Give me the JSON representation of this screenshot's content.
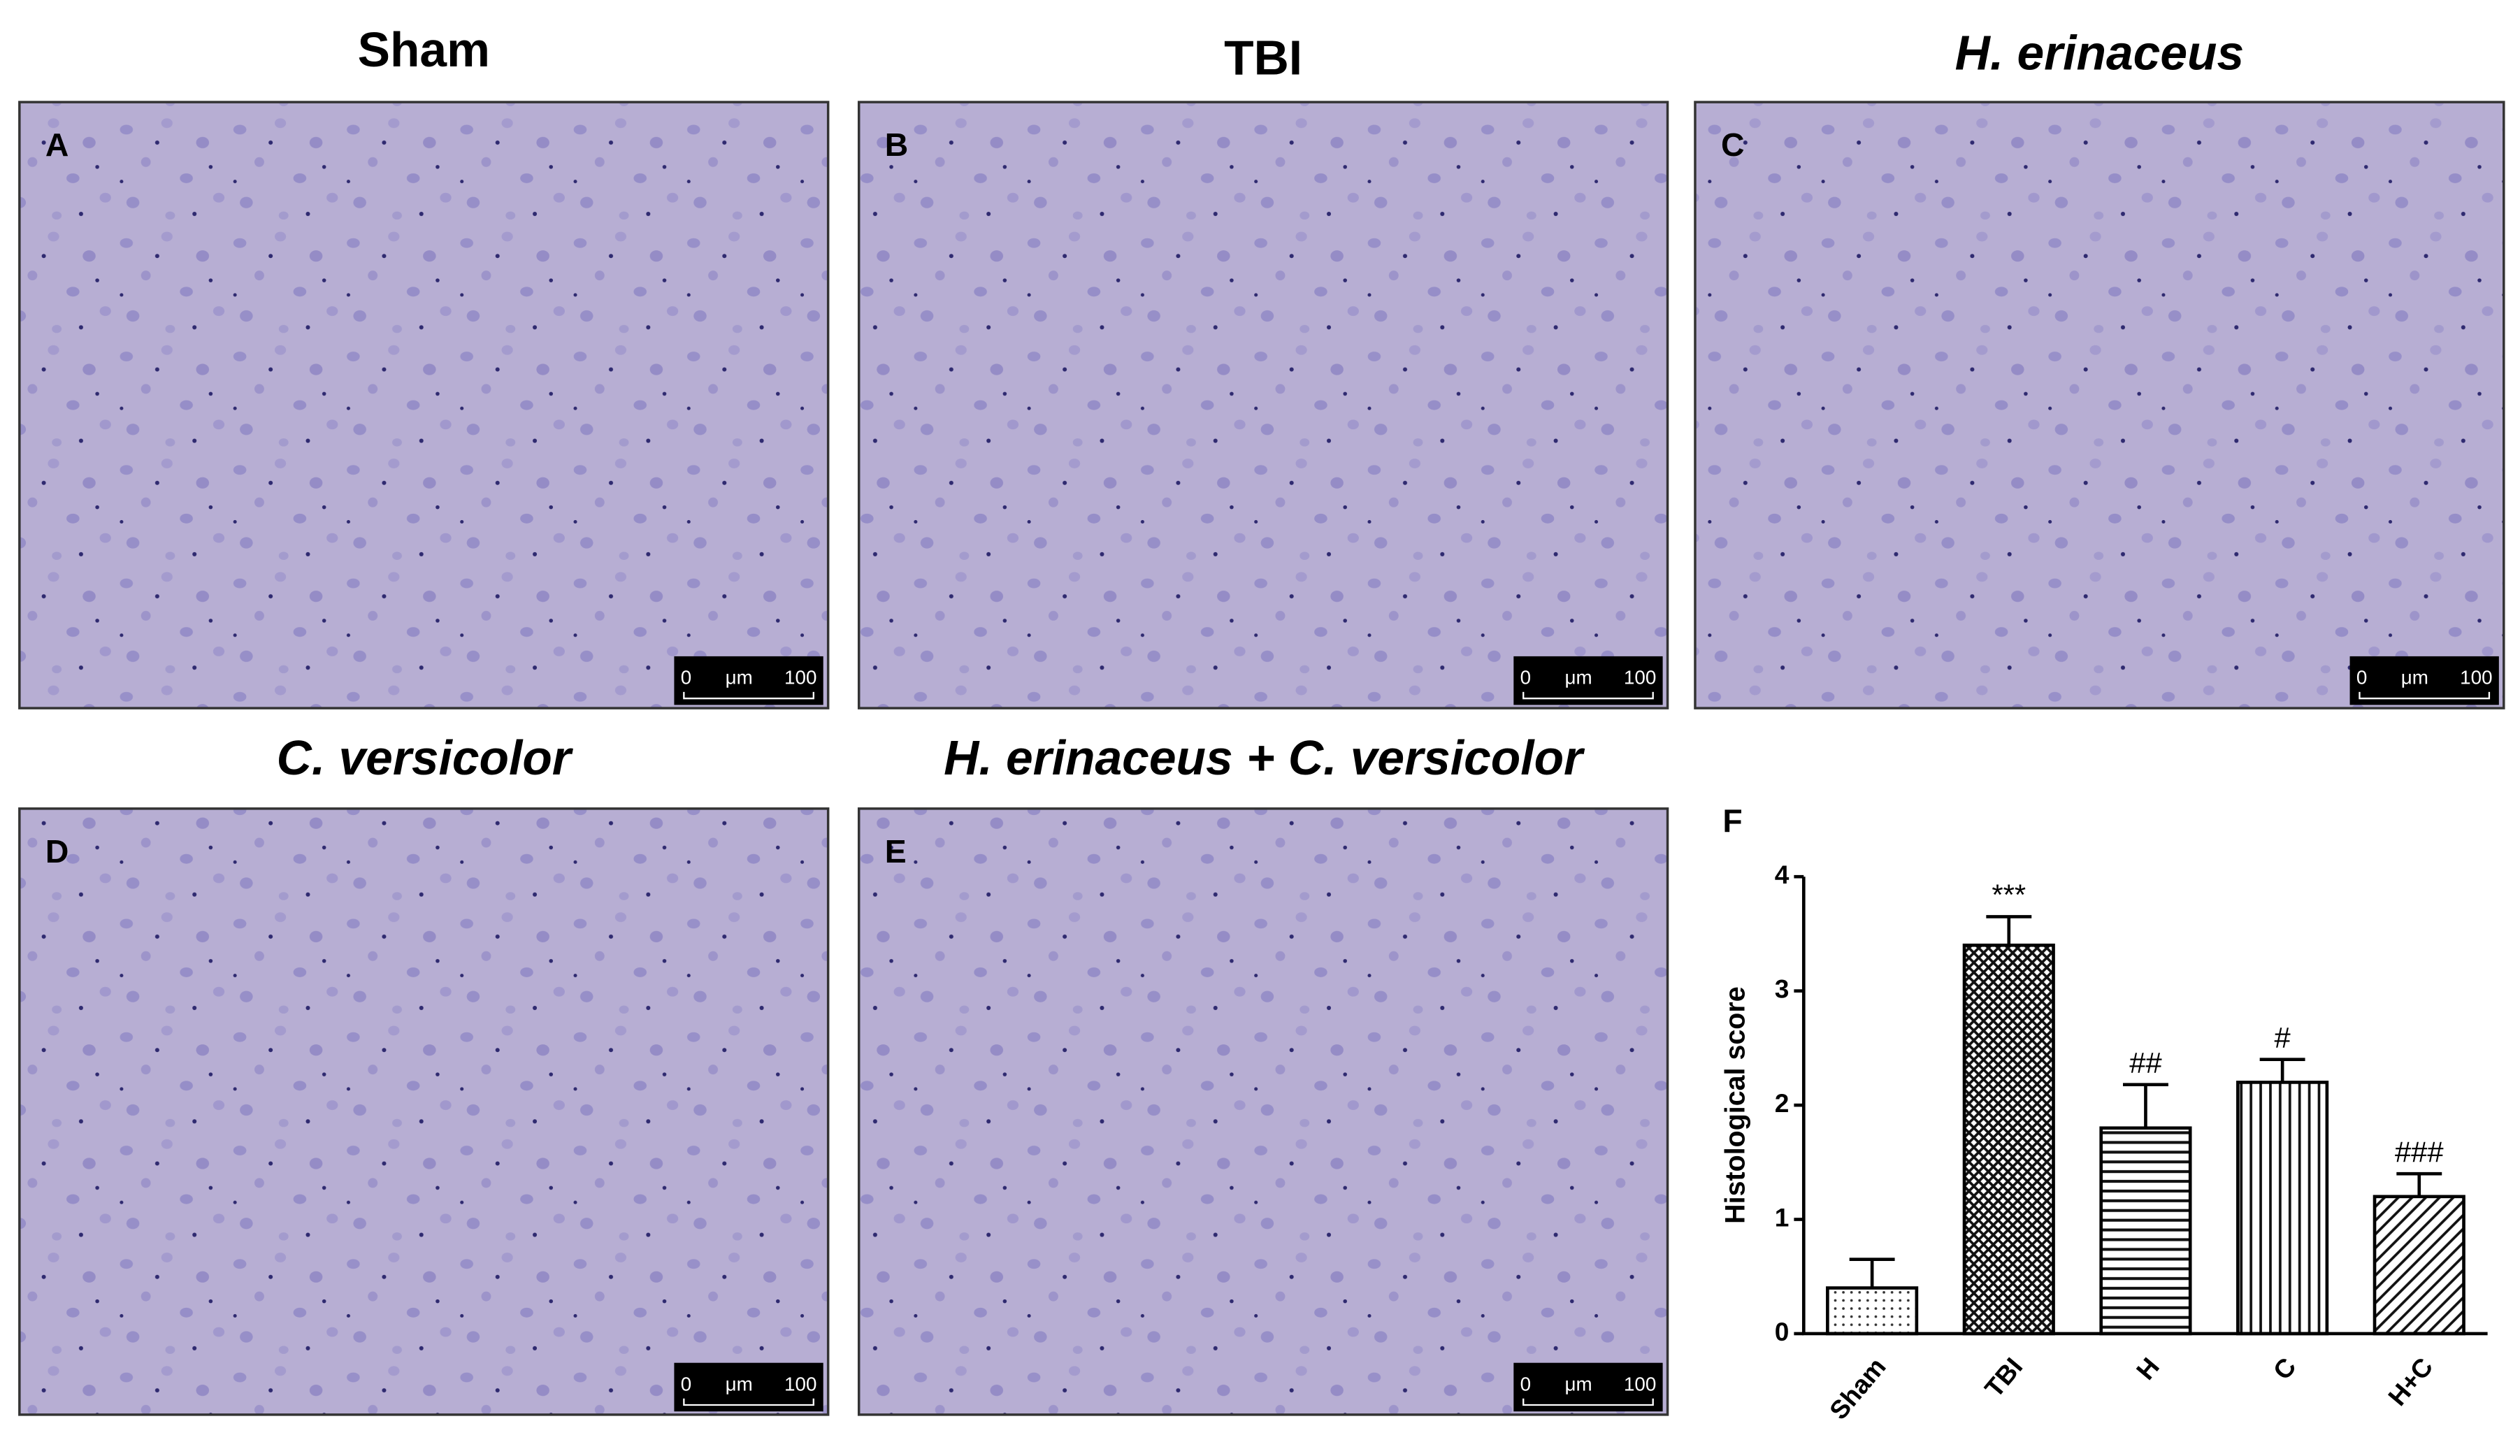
{
  "panels": [
    {
      "letter": "A",
      "title": "Sham",
      "title_style": "normal",
      "scale": {
        "start": "0",
        "unit": "μm",
        "end": "100"
      }
    },
    {
      "letter": "B",
      "title": "TBI",
      "title_style": "normal",
      "scale": {
        "start": "0",
        "unit": "μm",
        "end": "100"
      }
    },
    {
      "letter": "C",
      "title": "H. erinaceus",
      "title_style": "italic",
      "scale": {
        "start": "0",
        "unit": "μm",
        "end": "100"
      }
    },
    {
      "letter": "D",
      "title": "C. versicolor",
      "title_style": "italic",
      "scale": {
        "start": "0",
        "unit": "μm",
        "end": "100"
      }
    },
    {
      "letter": "E",
      "title": "H. erinaceus + C. versicolor",
      "title_style": "italic",
      "scale": {
        "start": "0",
        "unit": "μm",
        "end": "100"
      }
    }
  ],
  "chart_data": {
    "type": "bar",
    "label": "F",
    "y_label": "Histological score",
    "categories": [
      "Sham",
      "TBI",
      "H",
      "C",
      "H+C"
    ],
    "values": [
      0.4,
      3.4,
      1.8,
      2.2,
      1.2
    ],
    "errors": [
      0.25,
      0.25,
      0.38,
      0.2,
      0.2
    ],
    "annotations": [
      null,
      "***",
      "##",
      "#",
      "###"
    ],
    "patterns": [
      "dots",
      "crosshatch",
      "horizontal",
      "vertical",
      "diagonal"
    ],
    "ylim": [
      0,
      4
    ],
    "yticks": [
      0,
      1,
      2,
      3,
      4
    ]
  }
}
